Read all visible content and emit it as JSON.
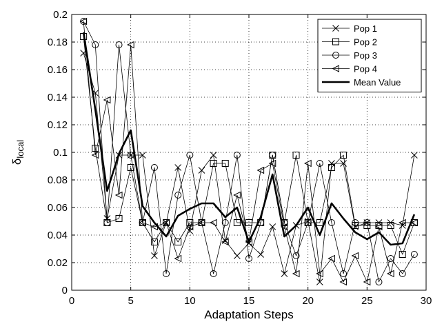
{
  "chart_data": {
    "type": "line",
    "title": "",
    "xlabel": "Adaptation Steps",
    "ylabel_main": "δ",
    "ylabel_sub": "local",
    "xlim": [
      0,
      30
    ],
    "ylim": [
      0,
      0.2
    ],
    "xticks": [
      0,
      5,
      10,
      15,
      20,
      25,
      30
    ],
    "yticks": [
      0,
      0.02,
      0.04,
      0.06,
      0.08,
      0.1,
      0.12,
      0.14,
      0.16,
      0.18,
      0.2
    ],
    "xtick_labels": [
      "0",
      "5",
      "10",
      "15",
      "20",
      "25",
      "30"
    ],
    "ytick_labels": [
      "0",
      "0.02",
      "0.04",
      "0.06",
      "0.08",
      "0.1",
      "0.12",
      "0.14",
      "0.16",
      "0.18",
      "0.2"
    ],
    "grid": true,
    "legend_position": "top-right",
    "x": [
      1,
      2,
      3,
      4,
      5,
      6,
      7,
      8,
      9,
      10,
      11,
      12,
      13,
      14,
      15,
      16,
      17,
      18,
      19,
      20,
      21,
      22,
      23,
      24,
      25,
      26,
      27,
      28,
      29
    ],
    "series": [
      {
        "name": "Pop 1",
        "marker": "x",
        "values": [
          0.172,
          0.143,
          0.052,
          0.098,
          0.098,
          0.098,
          0.025,
          0.049,
          0.089,
          0.043,
          0.087,
          0.098,
          0.036,
          0.025,
          0.034,
          0.026,
          0.046,
          0.012,
          0.047,
          0.05,
          0.006,
          0.092,
          0.092,
          0.046,
          0.049,
          0.049,
          0.049,
          0.047,
          0.098
        ]
      },
      {
        "name": "Pop 2",
        "marker": "square",
        "values": [
          0.184,
          0.103,
          0.049,
          0.052,
          0.089,
          0.049,
          0.035,
          0.049,
          0.035,
          0.049,
          0.049,
          0.092,
          0.092,
          0.049,
          0.049,
          0.049,
          0.098,
          0.049,
          0.098,
          0.049,
          0.049,
          0.089,
          0.098,
          0.047,
          0.047,
          0.047,
          0.047,
          0.026,
          0.049
        ]
      },
      {
        "name": "Pop 3",
        "marker": "circle",
        "values": [
          0.195,
          0.178,
          0.049,
          0.178,
          0.098,
          0.049,
          0.089,
          0.012,
          0.069,
          0.098,
          0.049,
          0.012,
          0.049,
          0.098,
          0.023,
          0.049,
          0.098,
          0.049,
          0.025,
          0.049,
          0.092,
          0.049,
          0.012,
          0.049,
          0.049,
          0.006,
          0.023,
          0.012,
          0.026
        ]
      },
      {
        "name": "Pop 4",
        "marker": "triangle-left",
        "values": [
          0.195,
          0.098,
          0.138,
          0.069,
          0.178,
          0.049,
          0.046,
          0.049,
          0.023,
          0.046,
          0.049,
          0.049,
          0.035,
          0.069,
          0.035,
          0.087,
          0.092,
          0.046,
          0.012,
          0.092,
          0.012,
          0.023,
          0.006,
          0.025,
          0.006,
          0.046,
          0.012,
          0.049,
          0.049
        ]
      },
      {
        "name": "Mean Value",
        "marker": "none",
        "bold": true,
        "values": [
          0.187,
          0.131,
          0.072,
          0.099,
          0.116,
          0.061,
          0.049,
          0.039,
          0.054,
          0.059,
          0.063,
          0.063,
          0.053,
          0.06,
          0.035,
          0.053,
          0.084,
          0.039,
          0.047,
          0.06,
          0.04,
          0.063,
          0.052,
          0.042,
          0.037,
          0.042,
          0.033,
          0.034,
          0.055
        ]
      }
    ]
  }
}
